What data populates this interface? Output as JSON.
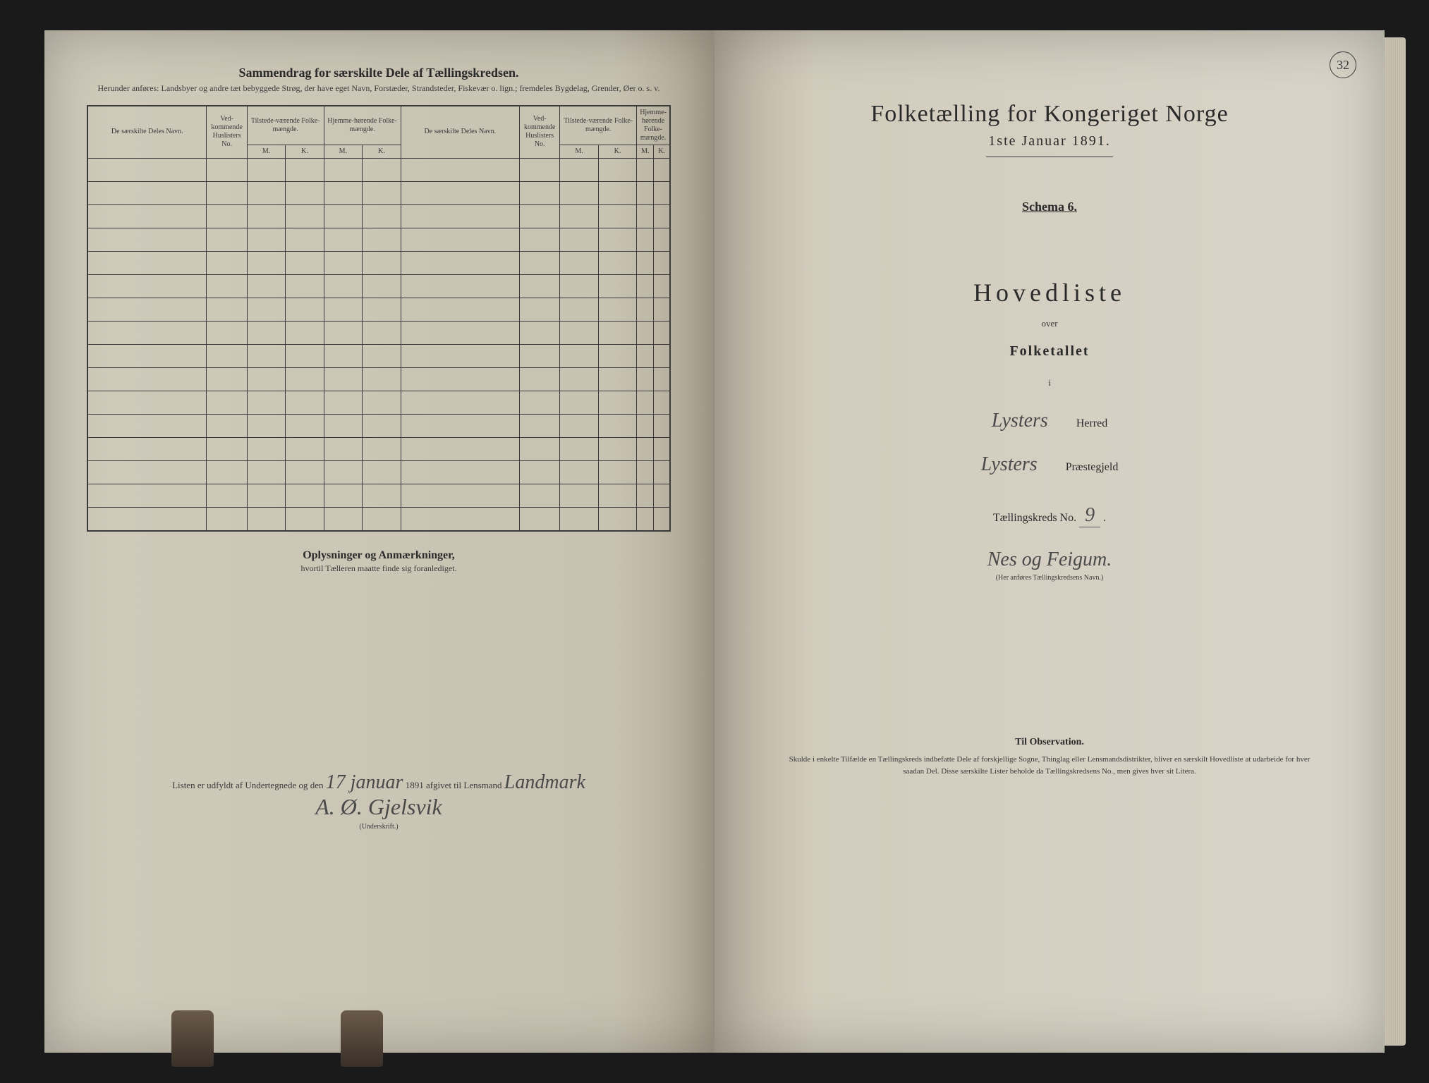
{
  "page_number": "32",
  "left_page": {
    "title": "Sammendrag for særskilte Dele af Tællingskredsen.",
    "subtitle": "Herunder anføres: Landsbyer og andre tæt bebyggede Strøg, der have eget Navn, Forstæder, Strandsteder, Fiskevær o. lign.; fremdeles Bygdelag, Grender, Øer o. s. v.",
    "table": {
      "headers": {
        "col1": "De særskilte Deles Navn.",
        "col2": "Ved-kommende Huslisters No.",
        "col3": "Tilstede-værende Folke-mængde.",
        "col4": "Hjemme-hørende Folke-mængde.",
        "col5": "De særskilte Deles Navn.",
        "col6": "Ved-kommende Huslisters No.",
        "col7": "Tilstede-værende Folke-mængde.",
        "col8": "Hjemme-hørende Folke-mængde.",
        "m": "M.",
        "k": "K."
      },
      "row_count": 16
    },
    "section2_title": "Oplysninger og Anmærkninger,",
    "section2_sub": "hvortil Tælleren maatte finde sig foranlediget.",
    "signature": {
      "prefix": "Listen er udfyldt af Undertegnede og den",
      "date": "17 januar",
      "year": "1891 afgivet til Lensmand",
      "name1": "Landmark",
      "name2": "A. Ø. Gjelsvik",
      "label": "(Underskrift.)"
    }
  },
  "right_page": {
    "main_title": "Folketælling for Kongeriget Norge",
    "date_line": "1ste Januar 1891.",
    "schema": "Schema 6.",
    "list_title": "Hovedliste",
    "over": "over",
    "folketallet": "Folketallet",
    "i": "i",
    "herred_value": "Lysters",
    "herred_label": "Herred",
    "prestegjeld_value": "Lysters",
    "prestegjeld_label": "Præstegjeld",
    "kreds_label": "Tællingskreds No.",
    "kreds_no": "9",
    "kreds_name": "Nes og Feigum.",
    "kreds_note": "(Her anføres Tællingskredsens Navn.)",
    "observation": {
      "title": "Til Observation.",
      "text": "Skulde i enkelte Tilfælde en Tællingskreds indbefatte Dele af forskjellige Sogne, Thinglag eller Lensmandsdistrikter, bliver en særskilt Hovedliste at udarbeide for hver saadan Del. Disse særskilte Lister beholde da Tællingskredsens No., men gives hver sit Litera."
    }
  },
  "colors": {
    "page_bg": "#d0cabb",
    "text": "#2a2a2a",
    "border": "#3a3a3a",
    "background": "#1a1a1a"
  }
}
